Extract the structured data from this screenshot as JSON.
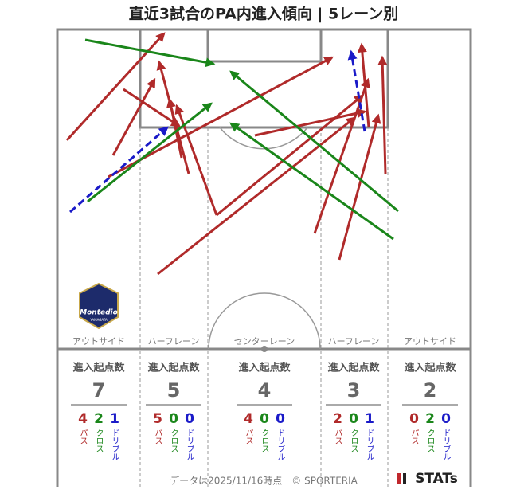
{
  "title": "直近3試合のPA内進入傾向 | 5レーン別",
  "entries_label": "進入起点数",
  "legend": {
    "pass": "パス",
    "cross": "クロス",
    "dribble": "ドリブル"
  },
  "lanes": [
    {
      "name": "アウトサイド",
      "total": 7,
      "pass": 4,
      "cross": 2,
      "dribble": 1
    },
    {
      "name": "ハーフレーン",
      "total": 5,
      "pass": 5,
      "cross": 0,
      "dribble": 0
    },
    {
      "name": "センターレーン",
      "total": 4,
      "pass": 4,
      "cross": 0,
      "dribble": 0
    },
    {
      "name": "ハーフレーン",
      "total": 3,
      "pass": 2,
      "cross": 0,
      "dribble": 1
    },
    {
      "name": "アウトサイド",
      "total": 2,
      "pass": 0,
      "cross": 2,
      "dribble": 0
    }
  ],
  "logo": {
    "name": "Montedio",
    "sub": "YAMAGATA"
  },
  "footer": "データは2025/11/16時点　© SPORTERIA",
  "brand": "STATs"
}
